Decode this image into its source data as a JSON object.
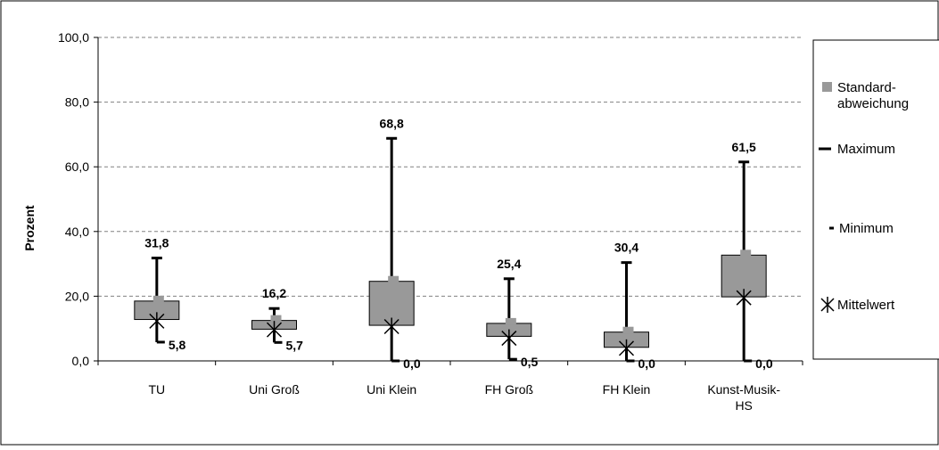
{
  "chart_data": {
    "type": "box",
    "title": "",
    "xlabel": "",
    "ylabel": "Prozent",
    "ylim": [
      0,
      100
    ],
    "yticks": [
      "0,0",
      "20,0",
      "40,0",
      "60,0",
      "80,0",
      "100,0"
    ],
    "grid": true,
    "legend_position": "right",
    "categories": [
      "TU",
      "Uni Groß",
      "Uni Klein",
      "FH Groß",
      "FH Klein",
      "Kunst-Musik-HS"
    ],
    "series": [
      {
        "name": "Standard-abweichung",
        "box_low": [
          12.8,
          9.8,
          11.0,
          7.6,
          4.2,
          19.8
        ],
        "box_high": [
          18.5,
          12.5,
          24.6,
          11.6,
          8.9,
          32.7
        ]
      },
      {
        "name": "Maximum",
        "values": [
          31.8,
          16.2,
          68.8,
          25.4,
          30.4,
          61.5
        ],
        "labels": [
          "31,8",
          "16,2",
          "68,8",
          "25,4",
          "30,4",
          "61,5"
        ]
      },
      {
        "name": "Minimum",
        "values": [
          5.8,
          5.7,
          0.0,
          0.5,
          0.0,
          0.0
        ],
        "labels": [
          "5,8",
          "5,7",
          "0,0",
          "0,5",
          "0,0",
          "0,0"
        ]
      },
      {
        "name": "Mittelwert",
        "values": [
          12.3,
          9.6,
          10.6,
          7.0,
          3.9,
          19.5
        ]
      }
    ],
    "colors": {
      "box": "#999999",
      "line": "#000000",
      "grid": "#808080"
    }
  },
  "legend": {
    "items": [
      {
        "key": "stddev",
        "lines": [
          "Standard-",
          "abweichung"
        ]
      },
      {
        "key": "max",
        "lines": [
          "Maximum"
        ]
      },
      {
        "key": "min",
        "lines": [
          "Minimum"
        ]
      },
      {
        "key": "mean",
        "lines": [
          "Mittelwert"
        ]
      }
    ]
  },
  "category_lines": [
    [
      "TU"
    ],
    [
      "Uni Groß"
    ],
    [
      "Uni Klein"
    ],
    [
      "FH Groß"
    ],
    [
      "FH Klein"
    ],
    [
      "Kunst-Musik-",
      "HS"
    ]
  ]
}
